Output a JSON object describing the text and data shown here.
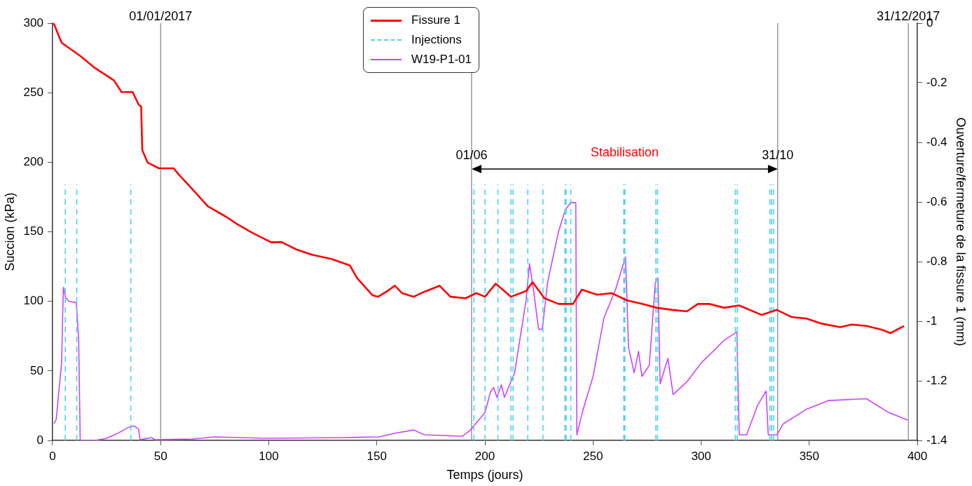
{
  "chart_data": {
    "type": "line",
    "xlabel": "Temps (jours)",
    "ylabel": "Succion (kPa)",
    "y2label": "Ouverture/fermeture de la fissure 1 (mm)",
    "xlim": [
      0,
      400
    ],
    "xticks": [
      0,
      50,
      100,
      150,
      200,
      250,
      300,
      350,
      400
    ],
    "ylim": [
      0,
      300
    ],
    "yticks": [
      0,
      50,
      100,
      150,
      200,
      250,
      300
    ],
    "y2lim": [
      -1.4,
      0
    ],
    "y2ticks": [
      -1.4,
      -1.2,
      -1,
      -0.8,
      -0.6,
      -0.4,
      -0.2,
      0
    ],
    "legend": "top",
    "marker": "none",
    "series": [
      {
        "name": "Fissure 1",
        "color": "#ff0000",
        "axis": "y2",
        "x": [
          0.5,
          4.2,
          12.8,
          19.7,
          28.4,
          31.9,
          37,
          39.8,
          41,
          41.5,
          44,
          49.2,
          56,
          58.5,
          64.8,
          71.7,
          80.3,
          85.5,
          92.5,
          101,
          106,
          113,
          120,
          129,
          137.5,
          141,
          148,
          150.6,
          154.8,
          158.3,
          161.7,
          167,
          172,
          179,
          184,
          191,
          196,
          200,
          205,
          212,
          219,
          222,
          227.5,
          234,
          240.7,
          244.8,
          251.8,
          258.7,
          265.6,
          272.6,
          279.5,
          286.6,
          293.3,
          298.5,
          303.7,
          310.6,
          317.5,
          328,
          335,
          341.8,
          348.7,
          355.6,
          364.3,
          369.6,
          376.4,
          383.3,
          387.5,
          393.8
        ],
        "values": [
          0,
          -0.066,
          -0.11,
          -0.151,
          -0.192,
          -0.231,
          -0.231,
          -0.273,
          -0.28,
          -0.426,
          -0.468,
          -0.487,
          -0.487,
          -0.509,
          -0.558,
          -0.614,
          -0.65,
          -0.675,
          -0.704,
          -0.735,
          -0.735,
          -0.76,
          -0.777,
          -0.791,
          -0.813,
          -0.857,
          -0.913,
          -0.918,
          -0.899,
          -0.881,
          -0.906,
          -0.918,
          -0.901,
          -0.881,
          -0.918,
          -0.923,
          -0.906,
          -0.918,
          -0.874,
          -0.918,
          -0.899,
          -0.869,
          -0.923,
          -0.942,
          -0.942,
          -0.894,
          -0.911,
          -0.906,
          -0.93,
          -0.942,
          -0.955,
          -0.962,
          -0.967,
          -0.942,
          -0.942,
          -0.955,
          -0.947,
          -0.979,
          -0.962,
          -0.986,
          -0.991,
          -1.008,
          -1.02,
          -1.011,
          -1.016,
          -1.028,
          -1.04,
          -1.016
        ]
      },
      {
        "name": "Injections",
        "color": "#4dd2f0",
        "line_style": "dashed",
        "x": [
          5.9,
          5.9,
          null,
          11.2,
          11.2,
          null,
          36.2,
          36.2,
          null,
          194.9,
          194.9,
          null,
          200,
          200,
          null,
          206,
          206,
          null,
          212,
          212,
          null,
          213,
          213,
          null,
          219.8,
          219.8,
          null,
          226.8,
          226.8,
          null,
          237,
          237,
          null,
          237.5,
          237.5,
          null,
          239.7,
          239.7,
          null,
          264.2,
          264.2,
          null,
          264.7,
          264.7,
          null,
          279,
          279,
          null,
          279.8,
          279.8,
          null,
          315.8,
          315.8,
          null,
          316.7,
          316.7,
          null,
          331.8,
          331.8,
          null,
          332.6,
          332.6,
          null,
          333.5,
          333.5
        ],
        "values": [
          0,
          184,
          null,
          0,
          184,
          null,
          0,
          184,
          null,
          0,
          184,
          null,
          0,
          184,
          null,
          0,
          184,
          null,
          0,
          184,
          null,
          0,
          184,
          null,
          0,
          184,
          null,
          0,
          184,
          null,
          0,
          184,
          null,
          0,
          184,
          null,
          0,
          184,
          null,
          0,
          184,
          null,
          0,
          184,
          null,
          0,
          184,
          null,
          0,
          184,
          null,
          0,
          184,
          null,
          0,
          184,
          null,
          0,
          184,
          null,
          0,
          184,
          null,
          0,
          184
        ]
      },
      {
        "name": "W19-P1-01",
        "color": "#cc44ff",
        "x": [
          0.7,
          1.7,
          4.2,
          5,
          6,
          7.6,
          11,
          12.1,
          12.8,
          19.7,
          25,
          30,
          35.3,
          37.7,
          39.8,
          40.5,
          45.7,
          47.4,
          64.8,
          75,
          99,
          134,
          151,
          158,
          167,
          172,
          189.4,
          193,
          200,
          202.6,
          204,
          205.5,
          207.6,
          209,
          213.7,
          219,
          220.6,
          222.4,
          224.8,
          226.5,
          229,
          234,
          237.2,
          239.7,
          242,
          242.5,
          245,
          250,
          255,
          260.4,
          265,
          266.4,
          269,
          271,
          272.6,
          276,
          278.8,
          280,
          281,
          284.6,
          287,
          293.3,
          300.2,
          305.5,
          310.6,
          316.5,
          317.6,
          321,
          326,
          330,
          331,
          335,
          338,
          348.7,
          359,
          376.4,
          386.8,
          395.5
        ],
        "values": [
          12,
          15,
          56,
          110,
          103,
          100,
          99,
          72,
          0,
          0,
          1.5,
          5,
          9.5,
          10.5,
          8,
          0.5,
          2,
          0.5,
          1,
          2.5,
          1.5,
          2,
          2.5,
          5,
          7.5,
          4,
          3,
          7,
          20,
          35,
          38,
          31,
          40,
          31,
          48.5,
          100.7,
          127,
          108.5,
          80,
          80,
          114,
          150,
          166,
          171,
          171,
          4,
          20,
          46,
          88,
          108.5,
          132,
          67,
          48.5,
          64,
          46,
          54,
          114,
          117,
          40.7,
          59,
          33,
          42,
          56,
          64,
          72,
          78,
          4,
          4,
          25,
          35.5,
          4,
          4,
          12,
          22.4,
          28.7,
          30,
          20,
          14.6
        ]
      }
    ],
    "ref_lines": [
      {
        "axis": "x",
        "value": 50,
        "color": "#808080"
      },
      {
        "axis": "x",
        "value": 193.8,
        "color": "#808080"
      },
      {
        "axis": "x",
        "value": 335.4,
        "color": "#808080"
      },
      {
        "axis": "x",
        "value": 395.8,
        "color": "#808080"
      }
    ],
    "annotations": [
      {
        "text": "01/06",
        "x": 193.8,
        "y": 200
      },
      {
        "text": "31/10",
        "x": 335.4,
        "y": 200
      },
      "Stabilisation",
      {
        "text": "01/01/2017",
        "x": 50,
        "y": 300
      },
      {
        "text": "31/12/2017",
        "x": 395.8,
        "y": 300
      }
    ]
  }
}
